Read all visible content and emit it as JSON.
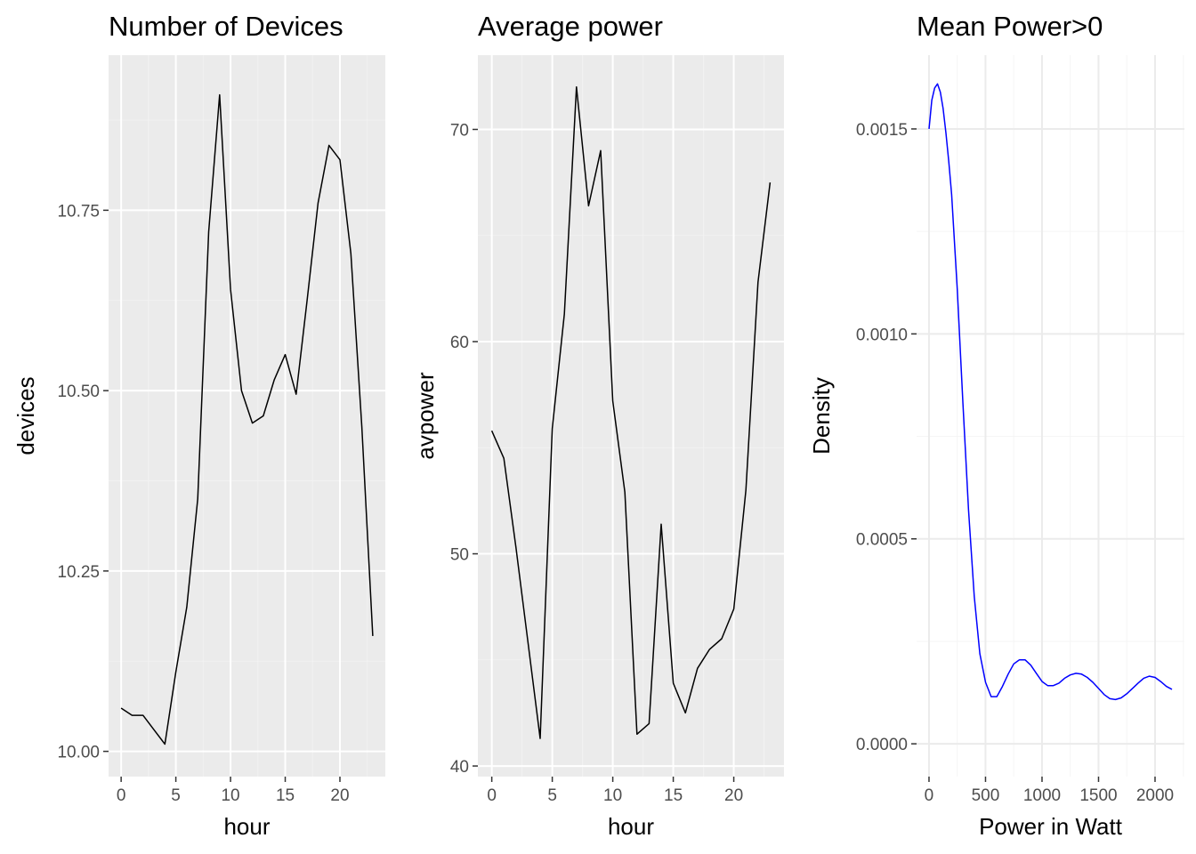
{
  "chart_data": [
    {
      "type": "line",
      "title": "Number of Devices",
      "xlabel": "hour",
      "ylabel": "devices",
      "xlim": [
        -1.15,
        24.15
      ],
      "ylim": [
        9.965,
        10.965
      ],
      "xticks": [
        0,
        5,
        10,
        15,
        20
      ],
      "yticks": [
        10.0,
        10.25,
        10.5,
        10.75
      ],
      "ytick_labels": [
        "10.00",
        "10.25",
        "10.50",
        "10.75"
      ],
      "panel": "grey",
      "grid": true,
      "line_color": "#000000",
      "x": [
        0,
        1,
        2,
        3,
        4,
        5,
        6,
        7,
        8,
        9,
        10,
        11,
        12,
        13,
        14,
        15,
        16,
        17,
        18,
        19,
        20,
        21,
        22,
        23
      ],
      "values": [
        10.06,
        10.05,
        10.05,
        10.03,
        10.01,
        10.11,
        10.2,
        10.35,
        10.72,
        10.91,
        10.64,
        10.5,
        10.455,
        10.465,
        10.515,
        10.55,
        10.495,
        10.625,
        10.76,
        10.84,
        10.82,
        10.69,
        10.45,
        10.16
      ]
    },
    {
      "type": "line",
      "title": "Average power",
      "xlabel": "hour",
      "ylabel": "avpower",
      "xlim": [
        -1.15,
        24.15
      ],
      "ylim": [
        39.5,
        73.5
      ],
      "xticks": [
        0,
        5,
        10,
        15,
        20
      ],
      "yticks": [
        40,
        50,
        60,
        70
      ],
      "ytick_labels": [
        "40",
        "50",
        "60",
        "70"
      ],
      "panel": "grey",
      "grid": true,
      "line_color": "#000000",
      "x": [
        0,
        1,
        2,
        3,
        4,
        5,
        6,
        7,
        8,
        9,
        10,
        11,
        12,
        13,
        14,
        15,
        16,
        17,
        18,
        19,
        20,
        21,
        22,
        23
      ],
      "values": [
        55.8,
        54.5,
        50.3,
        45.8,
        41.3,
        55.9,
        61.3,
        72.0,
        66.4,
        69.0,
        57.2,
        52.9,
        41.5,
        42.0,
        51.4,
        43.9,
        42.5,
        44.6,
        45.5,
        46.0,
        47.4,
        53.0,
        62.8,
        67.5
      ]
    },
    {
      "type": "line",
      "title": "Mean Power>0",
      "xlabel": "Power in Watt",
      "ylabel": "Density",
      "xlim": [
        -110,
        2260
      ],
      "ylim": [
        -8e-05,
        0.00168
      ],
      "xticks": [
        0,
        500,
        1000,
        1500,
        2000
      ],
      "yticks": [
        0.0,
        0.0005,
        0.001,
        0.0015
      ],
      "ytick_labels": [
        "0.0000",
        "0.0005",
        "0.0010",
        "0.0015"
      ],
      "panel": "white",
      "grid": true,
      "line_color": "#0000ff",
      "x": [
        0,
        25,
        50,
        75,
        100,
        125,
        150,
        175,
        200,
        250,
        300,
        350,
        400,
        450,
        500,
        550,
        600,
        650,
        700,
        750,
        800,
        850,
        900,
        950,
        1000,
        1050,
        1100,
        1150,
        1200,
        1250,
        1300,
        1350,
        1400,
        1450,
        1500,
        1550,
        1600,
        1650,
        1700,
        1750,
        1800,
        1850,
        1900,
        1950,
        2000,
        2050,
        2100,
        2150
      ],
      "values": [
        0.0015,
        0.00157,
        0.0016,
        0.00161,
        0.00159,
        0.00155,
        0.00149,
        0.00142,
        0.00134,
        0.00111,
        0.00083,
        0.00057,
        0.00036,
        0.00022,
        0.00015,
        0.000115,
        0.000115,
        0.00014,
        0.00017,
        0.000195,
        0.000205,
        0.000205,
        0.000192,
        0.000172,
        0.000152,
        0.000142,
        0.000142,
        0.000148,
        0.00016,
        0.000168,
        0.000172,
        0.00017,
        0.000162,
        0.00015,
        0.000135,
        0.00012,
        0.00011,
        0.000108,
        0.000112,
        0.000122,
        0.000135,
        0.000148,
        0.00016,
        0.000165,
        0.000162,
        0.000152,
        0.00014,
        0.000133
      ]
    }
  ]
}
